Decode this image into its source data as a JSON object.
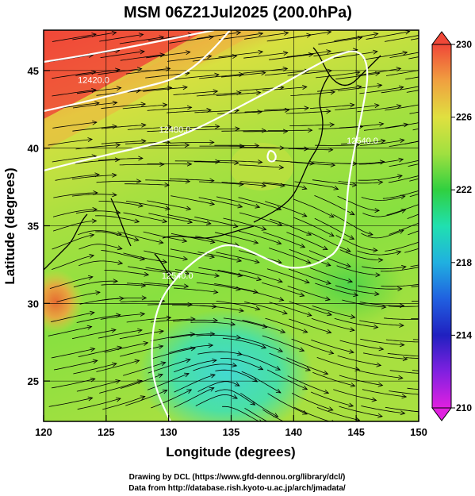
{
  "title": "MSM 06Z21Jul2025 (200.0hPa)",
  "colors": {
    "red": "#f05040",
    "orange": "#f0a040",
    "yellow": "#e0e040",
    "lime": "#a0e040",
    "green": "#40d040",
    "cyan": "#40e0c0",
    "contour": "#ffffff",
    "stream": "#000000"
  },
  "chart_data": {
    "type": "heatmap",
    "xlabel": "Longitude (degrees)",
    "ylabel": "Latitude  (degrees)",
    "xlim": [
      120,
      150
    ],
    "ylim": [
      22.4,
      47.6
    ],
    "x_ticks": [
      120,
      125,
      130,
      135,
      140,
      145,
      150
    ],
    "y_ticks": [
      25,
      30,
      35,
      40,
      45
    ],
    "colorbar": {
      "ticks": [
        210,
        214,
        218,
        222,
        226,
        230
      ],
      "range": [
        210,
        230
      ]
    },
    "contour_labels": [
      {
        "text": "12420.0",
        "lon": 124,
        "lat": 44.2
      },
      {
        "text": "12480.0",
        "lon": 130.5,
        "lat": 41.0
      },
      {
        "text": "12540.0",
        "lon": 145.5,
        "lat": 40.3
      },
      {
        "text": "12540.0",
        "lon": 130.7,
        "lat": 31.6
      }
    ]
  },
  "credits": {
    "line1": "Drawing by DCL (https://www.gfd-dennou.org/library/dcl/)",
    "line2": "Data from http://database.rish.kyoto-u.ac.jp/arch/jmadata/"
  }
}
